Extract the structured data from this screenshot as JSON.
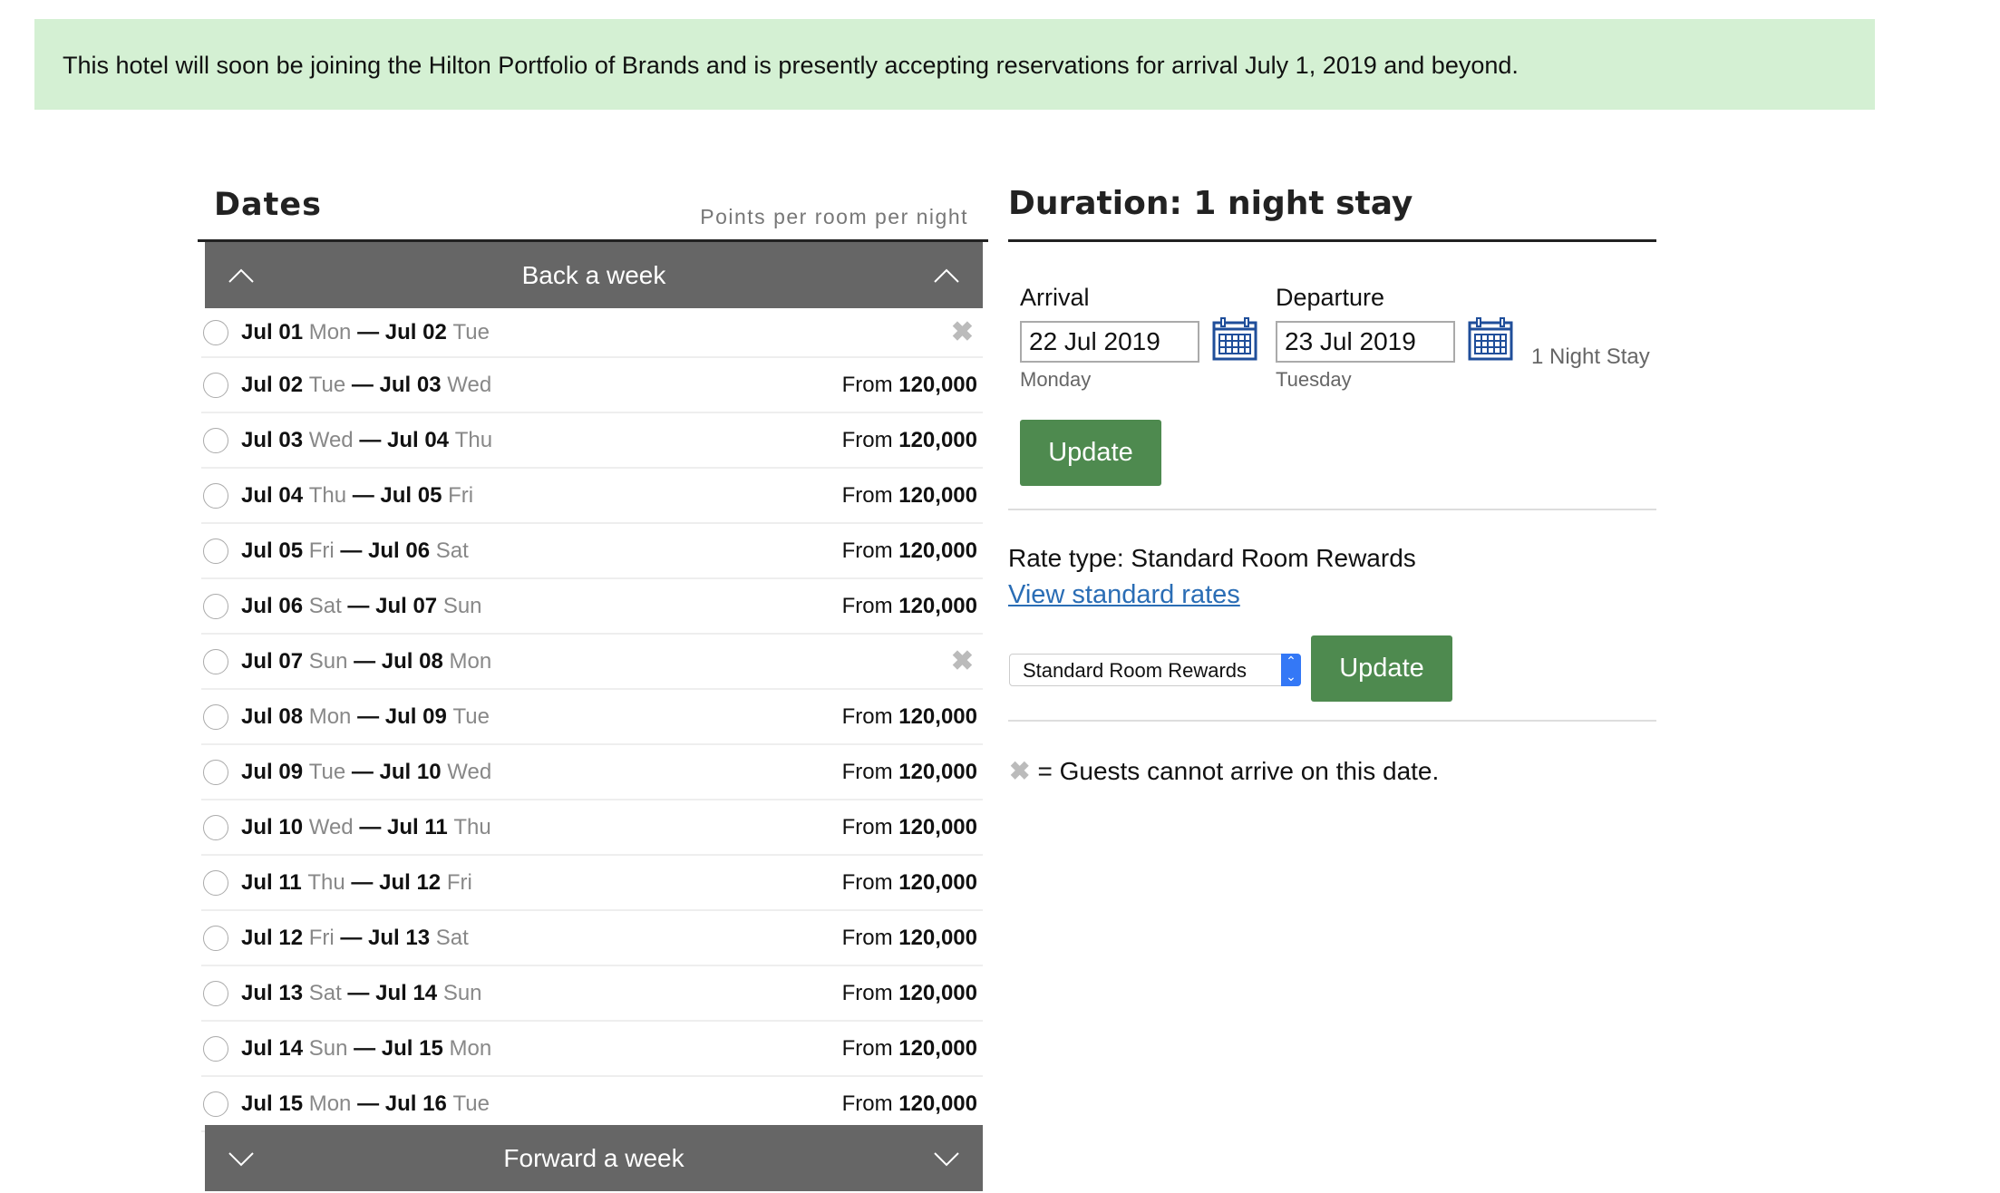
{
  "banner": {
    "text": "This hotel will soon be joining the Hilton Portfolio of Brands and is presently accepting reservations for arrival July 1, 2019 and beyond."
  },
  "dates": {
    "title": "Dates",
    "subtitle": "Points per room per night",
    "back_label": "Back a week",
    "forward_label": "Forward a week",
    "rows": [
      {
        "from": "Jul 01",
        "from_day": "Mon",
        "to": "Jul 02",
        "to_day": "Tue",
        "available": false
      },
      {
        "from": "Jul 02",
        "from_day": "Tue",
        "to": "Jul 03",
        "to_day": "Wed",
        "available": true,
        "prefix": "From",
        "price": "120,000"
      },
      {
        "from": "Jul 03",
        "from_day": "Wed",
        "to": "Jul 04",
        "to_day": "Thu",
        "available": true,
        "prefix": "From",
        "price": "120,000"
      },
      {
        "from": "Jul 04",
        "from_day": "Thu",
        "to": "Jul 05",
        "to_day": "Fri",
        "available": true,
        "prefix": "From",
        "price": "120,000"
      },
      {
        "from": "Jul 05",
        "from_day": "Fri",
        "to": "Jul 06",
        "to_day": "Sat",
        "available": true,
        "prefix": "From",
        "price": "120,000"
      },
      {
        "from": "Jul 06",
        "from_day": "Sat",
        "to": "Jul 07",
        "to_day": "Sun",
        "available": true,
        "prefix": "From",
        "price": "120,000"
      },
      {
        "from": "Jul 07",
        "from_day": "Sun",
        "to": "Jul 08",
        "to_day": "Mon",
        "available": false
      },
      {
        "from": "Jul 08",
        "from_day": "Mon",
        "to": "Jul 09",
        "to_day": "Tue",
        "available": true,
        "prefix": "From",
        "price": "120,000"
      },
      {
        "from": "Jul 09",
        "from_day": "Tue",
        "to": "Jul 10",
        "to_day": "Wed",
        "available": true,
        "prefix": "From",
        "price": "120,000"
      },
      {
        "from": "Jul 10",
        "from_day": "Wed",
        "to": "Jul 11",
        "to_day": "Thu",
        "available": true,
        "prefix": "From",
        "price": "120,000"
      },
      {
        "from": "Jul 11",
        "from_day": "Thu",
        "to": "Jul 12",
        "to_day": "Fri",
        "available": true,
        "prefix": "From",
        "price": "120,000"
      },
      {
        "from": "Jul 12",
        "from_day": "Fri",
        "to": "Jul 13",
        "to_day": "Sat",
        "available": true,
        "prefix": "From",
        "price": "120,000"
      },
      {
        "from": "Jul 13",
        "from_day": "Sat",
        "to": "Jul 14",
        "to_day": "Sun",
        "available": true,
        "prefix": "From",
        "price": "120,000"
      },
      {
        "from": "Jul 14",
        "from_day": "Sun",
        "to": "Jul 15",
        "to_day": "Mon",
        "available": true,
        "prefix": "From",
        "price": "120,000"
      },
      {
        "from": "Jul 15",
        "from_day": "Mon",
        "to": "Jul 16",
        "to_day": "Tue",
        "available": true,
        "prefix": "From",
        "price": "120,000"
      }
    ]
  },
  "duration": {
    "title": "Duration: 1 night stay",
    "arrival_label": "Arrival",
    "arrival_value": "22 Jul 2019",
    "arrival_day": "Monday",
    "departure_label": "Departure",
    "departure_value": "23 Jul 2019",
    "departure_day": "Tuesday",
    "nights": "1 Night Stay",
    "update_label": "Update"
  },
  "rate": {
    "label": "Rate type: Standard Room Rewards",
    "link": "View standard rates",
    "selected": "Standard Room Rewards",
    "update_label": "Update"
  },
  "legend": {
    "text": "= Guests cannot arrive on this date."
  },
  "colors": {
    "banner": "#d4f0d3",
    "button": "#4e8a4f",
    "nav_bar": "#666666",
    "link": "#2a6db5",
    "calendar_icon": "#1f4e9a"
  }
}
